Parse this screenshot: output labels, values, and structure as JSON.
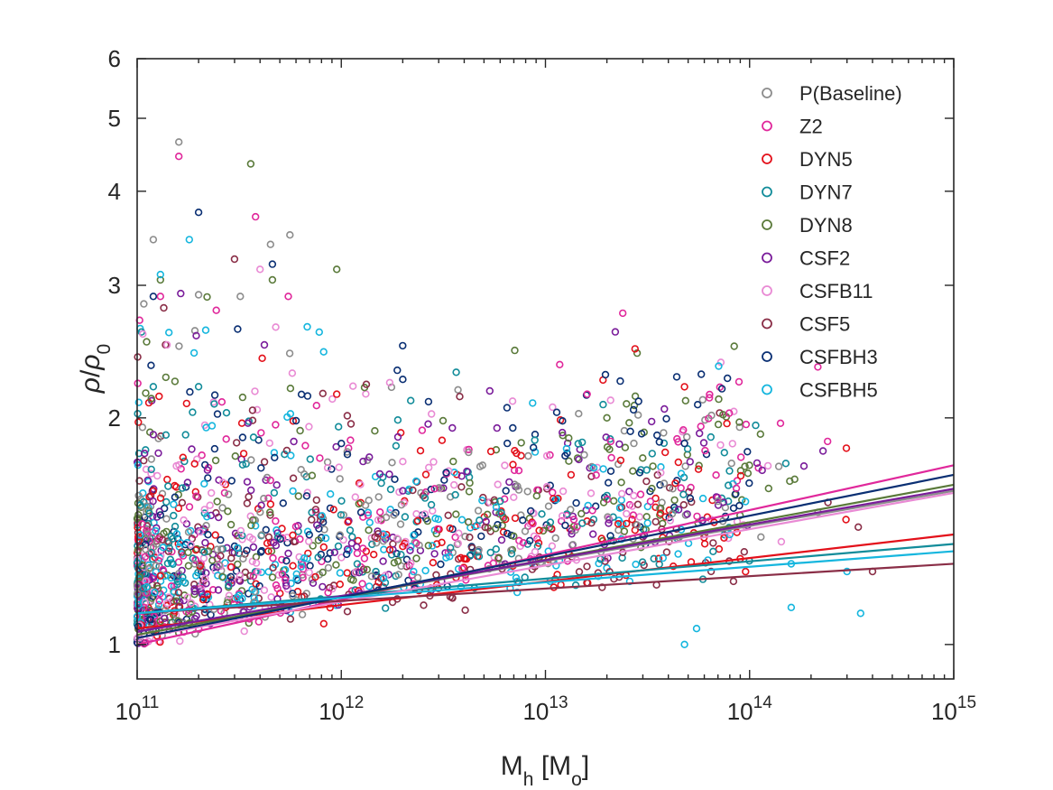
{
  "chart_data": {
    "type": "scatter",
    "title": "",
    "xlabel": {
      "main": "M",
      "sub": "h",
      "unit_prefix": " [M",
      "unit_sub": "o",
      "unit_suffix": "]"
    },
    "ylabel": {
      "rho": "ρ",
      "slash": "/",
      "rho0": "ρ",
      "sub": "0"
    },
    "x_scale": "log",
    "y_scale": "log",
    "xlim": [
      100000000000.0,
      1000000000000000.0
    ],
    "ylim": [
      0.9,
      6
    ],
    "x_ticks": [
      {
        "value": 100000000000.0,
        "base": "10",
        "exp": "11"
      },
      {
        "value": 1000000000000.0,
        "base": "10",
        "exp": "12"
      },
      {
        "value": 10000000000000.0,
        "base": "10",
        "exp": "13"
      },
      {
        "value": 100000000000000.0,
        "base": "10",
        "exp": "14"
      },
      {
        "value": 1000000000000000.0,
        "base": "10",
        "exp": "15"
      }
    ],
    "y_ticks": [
      {
        "value": 1,
        "label": "1"
      },
      {
        "value": 2,
        "label": "2"
      },
      {
        "value": 3,
        "label": "3"
      },
      {
        "value": 4,
        "label": "4"
      },
      {
        "value": 5,
        "label": "5"
      },
      {
        "value": 6,
        "label": "6"
      }
    ],
    "grid": false,
    "legend_position": "top-right",
    "series": [
      {
        "name": "P(Baseline)",
        "color": "#8c8c8c",
        "fit": [
          [
            100000000000.0,
            1.04
          ],
          [
            1000000000000000.0,
            1.6
          ]
        ],
        "highlights": [
          [
            160000000000.0,
            4.65
          ],
          [
            120000000000.0,
            3.45
          ],
          [
            450000000000.0,
            3.4
          ],
          [
            560000000000.0,
            3.5
          ],
          [
            4200000000000.0,
            1.8
          ],
          [
            320000000000.0,
            2.9
          ],
          [
            70000000000000.0,
            1.55
          ]
        ]
      },
      {
        "name": "Z2",
        "color": "#e0289b",
        "fit": [
          [
            100000000000.0,
            1.0
          ],
          [
            1000000000000000.0,
            1.73
          ]
        ],
        "highlights": [
          [
            160000000000.0,
            4.45
          ],
          [
            380000000000.0,
            3.7
          ],
          [
            16000000000000.0,
            2.15
          ],
          [
            550000000000.0,
            2.9
          ],
          [
            260000000000.0,
            2.1
          ],
          [
            130000000000.0,
            2.9
          ]
        ]
      },
      {
        "name": "DYN5",
        "color": "#e3101a",
        "fit": [
          [
            100000000000.0,
            1.05
          ],
          [
            1000000000000000.0,
            1.4
          ]
        ],
        "highlights": [
          [
            120000000000.0,
            1.6
          ],
          [
            410000000000.0,
            2.4
          ],
          [
            2000000000000.0,
            1.35
          ],
          [
            90000000000000.0,
            1.3
          ]
        ]
      },
      {
        "name": "DYN7",
        "color": "#128c9a",
        "fit": [
          [
            100000000000.0,
            1.1
          ],
          [
            1000000000000000.0,
            1.36
          ]
        ],
        "highlights": [
          [
            120000000000.0,
            2.2
          ],
          [
            34000000000000.0,
            1.3
          ],
          [
            200000000000.0,
            2.2
          ],
          [
            6000000000000.0,
            1.55
          ]
        ]
      },
      {
        "name": "DYN8",
        "color": "#5a7a3a",
        "fit": [
          [
            100000000000.0,
            1.03
          ],
          [
            1000000000000000.0,
            1.63
          ]
        ],
        "highlights": [
          [
            360000000000.0,
            4.35
          ],
          [
            950000000000.0,
            3.15
          ],
          [
            130000000000.0,
            3.05
          ],
          [
            460000000000.0,
            3.05
          ],
          [
            13000000000000.0,
            1.88
          ],
          [
            20000000000000.0,
            2.0
          ]
        ]
      },
      {
        "name": "CSF2",
        "color": "#7a1c9a",
        "fit": [
          [
            100000000000.0,
            1.04
          ],
          [
            1000000000000000.0,
            1.61
          ]
        ],
        "highlights": [
          [
            420000000000.0,
            2.5
          ],
          [
            2000000000000.0,
            1.6
          ],
          [
            120000000000.0,
            1.9
          ]
        ]
      },
      {
        "name": "CSFB11",
        "color": "#e98ad4",
        "fit": [
          [
            100000000000.0,
            1.02
          ],
          [
            1000000000000000.0,
            1.59
          ]
        ],
        "highlights": [
          [
            400000000000.0,
            3.15
          ],
          [
            2000000000000.0,
            1.75
          ],
          [
            140000000000.0,
            2.5
          ]
        ]
      },
      {
        "name": "CSF5",
        "color": "#8a2e47",
        "fit": [
          [
            100000000000.0,
            1.1
          ],
          [
            1000000000000000.0,
            1.28
          ]
        ],
        "highlights": [
          [
            300000000000.0,
            3.25
          ],
          [
            135000000000.0,
            2.8
          ],
          [
            400000000000000.0,
            1.25
          ],
          [
            35000000000000.0,
            1.2
          ]
        ]
      },
      {
        "name": "CSFBH3",
        "color": "#0a2f73",
        "fit": [
          [
            100000000000.0,
            1.02
          ],
          [
            1000000000000000.0,
            1.68
          ]
        ],
        "highlights": [
          [
            460000000000.0,
            3.2
          ],
          [
            200000000000.0,
            3.75
          ],
          [
            120000000000.0,
            2.9
          ],
          [
            27000000000000.0,
            2.05
          ],
          [
            48000000000000.0,
            1.85
          ],
          [
            2000000000000.0,
            2.25
          ],
          [
            6500000000000.0,
            1.85
          ]
        ]
      },
      {
        "name": "CSFBH5",
        "color": "#15b6de",
        "fit": [
          [
            100000000000.0,
            1.1
          ],
          [
            1000000000000000.0,
            1.33
          ]
        ],
        "highlights": [
          [
            130000000000.0,
            3.1
          ],
          [
            180000000000.0,
            3.45
          ],
          [
            780000000000.0,
            2.6
          ],
          [
            80000000000000.0,
            1.4
          ],
          [
            160000000000000.0,
            1.28
          ],
          [
            350000000000000.0,
            1.1
          ],
          [
            48000000000000.0,
            1.0
          ],
          [
            55000000000000.0,
            1.05
          ],
          [
            160000000000000.0,
            1.12
          ],
          [
            300000000000000.0,
            1.25
          ]
        ]
      }
    ]
  }
}
